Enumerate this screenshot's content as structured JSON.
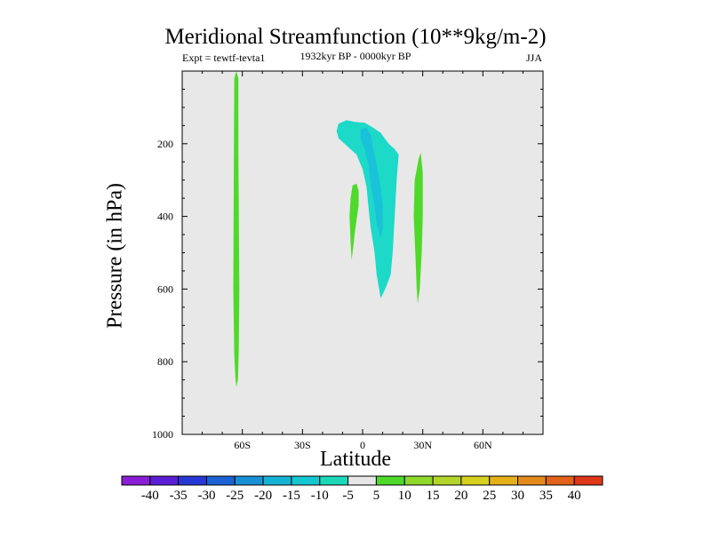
{
  "chart_data": {
    "type": "contour",
    "title": "Meridional Streamfunction (10**9kg/m-2)",
    "subtitle_left": "Expt = tewtf-tevta1",
    "subtitle_center": "1932kyr BP - 0000kyr BP",
    "subtitle_right": "JJA",
    "xlabel": "Latitude",
    "ylabel": "Pressure (in hPa)",
    "xlim": [
      -90,
      90
    ],
    "ylim": [
      1000,
      0
    ],
    "x_ticks": [
      {
        "value": -60,
        "label": "60S"
      },
      {
        "value": -30,
        "label": "30S"
      },
      {
        "value": 0,
        "label": "0"
      },
      {
        "value": 30,
        "label": "30N"
      },
      {
        "value": 60,
        "label": "60N"
      }
    ],
    "y_ticks": [
      {
        "value": 200,
        "label": "200"
      },
      {
        "value": 400,
        "label": "400"
      },
      {
        "value": 600,
        "label": "600"
      },
      {
        "value": 800,
        "label": "800"
      },
      {
        "value": 1000,
        "label": "1000"
      }
    ],
    "background_color": "#e8e8e8",
    "regions": [
      {
        "name": "neg-main",
        "level_range": [
          -10,
          -5
        ],
        "color": "#1dd9c8",
        "points": [
          [
            -12,
            145
          ],
          [
            -8,
            135
          ],
          [
            -4,
            140
          ],
          [
            1,
            142
          ],
          [
            5,
            155
          ],
          [
            9,
            170
          ],
          [
            13,
            200
          ],
          [
            16,
            215
          ],
          [
            18,
            230
          ],
          [
            17,
            300
          ],
          [
            16,
            400
          ],
          [
            15,
            500
          ],
          [
            14,
            560
          ],
          [
            12,
            590
          ],
          [
            10,
            615
          ],
          [
            9,
            625
          ],
          [
            7,
            560
          ],
          [
            6,
            500
          ],
          [
            4,
            430
          ],
          [
            3,
            380
          ],
          [
            2,
            320
          ],
          [
            0,
            270
          ],
          [
            -3,
            230
          ],
          [
            -7,
            210
          ],
          [
            -10,
            195
          ],
          [
            -12,
            185
          ],
          [
            -13,
            165
          ]
        ]
      },
      {
        "name": "neg-core",
        "level_range": [
          -15,
          -10
        ],
        "color": "#19c2d8",
        "points": [
          [
            -1,
            160
          ],
          [
            2,
            155
          ],
          [
            4,
            175
          ],
          [
            5,
            205
          ],
          [
            7,
            260
          ],
          [
            9,
            320
          ],
          [
            10,
            370
          ],
          [
            10,
            430
          ],
          [
            9,
            460
          ],
          [
            7,
            420
          ],
          [
            6,
            370
          ],
          [
            4,
            310
          ],
          [
            3,
            260
          ],
          [
            1,
            215
          ],
          [
            -1,
            185
          ]
        ]
      },
      {
        "name": "pos-60s",
        "level_range": [
          5,
          10
        ],
        "color": "#4fd92a",
        "points": [
          [
            -64,
            20
          ],
          [
            -63,
            0
          ],
          [
            -62,
            20
          ],
          [
            -62,
            200
          ],
          [
            -61.5,
            600
          ],
          [
            -61.8,
            780
          ],
          [
            -62.2,
            850
          ],
          [
            -63,
            870
          ],
          [
            -63.5,
            840
          ],
          [
            -64,
            780
          ],
          [
            -64.5,
            600
          ],
          [
            -64.2,
            200
          ]
        ]
      },
      {
        "name": "pos-0",
        "level_range": [
          5,
          10
        ],
        "color": "#4fd92a",
        "points": [
          [
            -6,
            350
          ],
          [
            -5,
            315
          ],
          [
            -3,
            310
          ],
          [
            -2,
            330
          ],
          [
            -2,
            370
          ],
          [
            -3,
            410
          ],
          [
            -4,
            450
          ],
          [
            -5,
            500
          ],
          [
            -5.5,
            520
          ],
          [
            -6,
            470
          ],
          [
            -6.5,
            400
          ]
        ]
      },
      {
        "name": "pos-30n",
        "level_range": [
          5,
          10
        ],
        "color": "#4fd92a",
        "points": [
          [
            26,
            300
          ],
          [
            28,
            240
          ],
          [
            29,
            225
          ],
          [
            30,
            280
          ],
          [
            30,
            400
          ],
          [
            29.5,
            500
          ],
          [
            28.5,
            600
          ],
          [
            27.5,
            640
          ],
          [
            27,
            600
          ],
          [
            26.3,
            500
          ],
          [
            25.5,
            400
          ]
        ]
      }
    ],
    "colorbar": {
      "labels": [
        "-40",
        "-35",
        "-30",
        "-25",
        "-20",
        "-15",
        "-10",
        "-5",
        "5",
        "10",
        "15",
        "20",
        "25",
        "30",
        "35",
        "40"
      ],
      "colors": [
        "#8a1ed6",
        "#5a1ed6",
        "#2638d6",
        "#1a62d6",
        "#1890d6",
        "#15b4d6",
        "#14c8d2",
        "#1ad8b8",
        "#e6e6e6",
        "#4fd92a",
        "#8fd92a",
        "#b4d62a",
        "#d6d01e",
        "#e6b01a",
        "#e28a1a",
        "#e2621a",
        "#e0361a"
      ]
    }
  }
}
